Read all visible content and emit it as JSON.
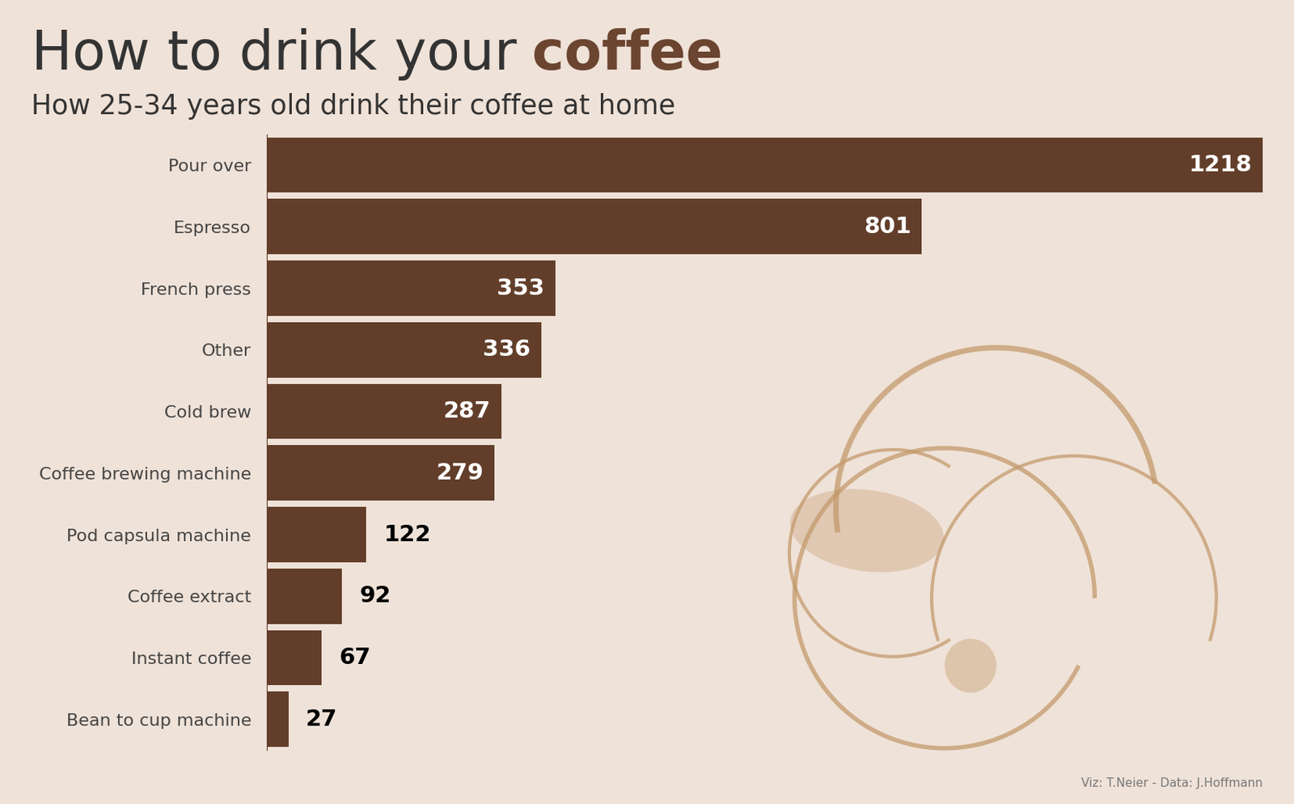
{
  "chart_data": {
    "type": "bar",
    "orientation": "horizontal",
    "title": "How to drink your coffee",
    "subtitle": "How 25-34 years old drink their coffee at home",
    "categories": [
      "Pour over",
      "Espresso",
      "French press",
      "Other",
      "Cold brew",
      "Coffee brewing machine",
      "Pod capsula machine",
      "Coffee extract",
      "Instant coffee",
      "Bean to cup machine"
    ],
    "values": [
      1218,
      801,
      353,
      336,
      287,
      279,
      122,
      92,
      67,
      27
    ],
    "color": "#623e2a",
    "xlim": [
      0,
      1218
    ],
    "xticks": [],
    "data_labels": true,
    "tick_labels": "y",
    "grid": false,
    "annotations": [
      "Viz: T.Neier - Data: J.Hoffmann"
    ]
  }
}
